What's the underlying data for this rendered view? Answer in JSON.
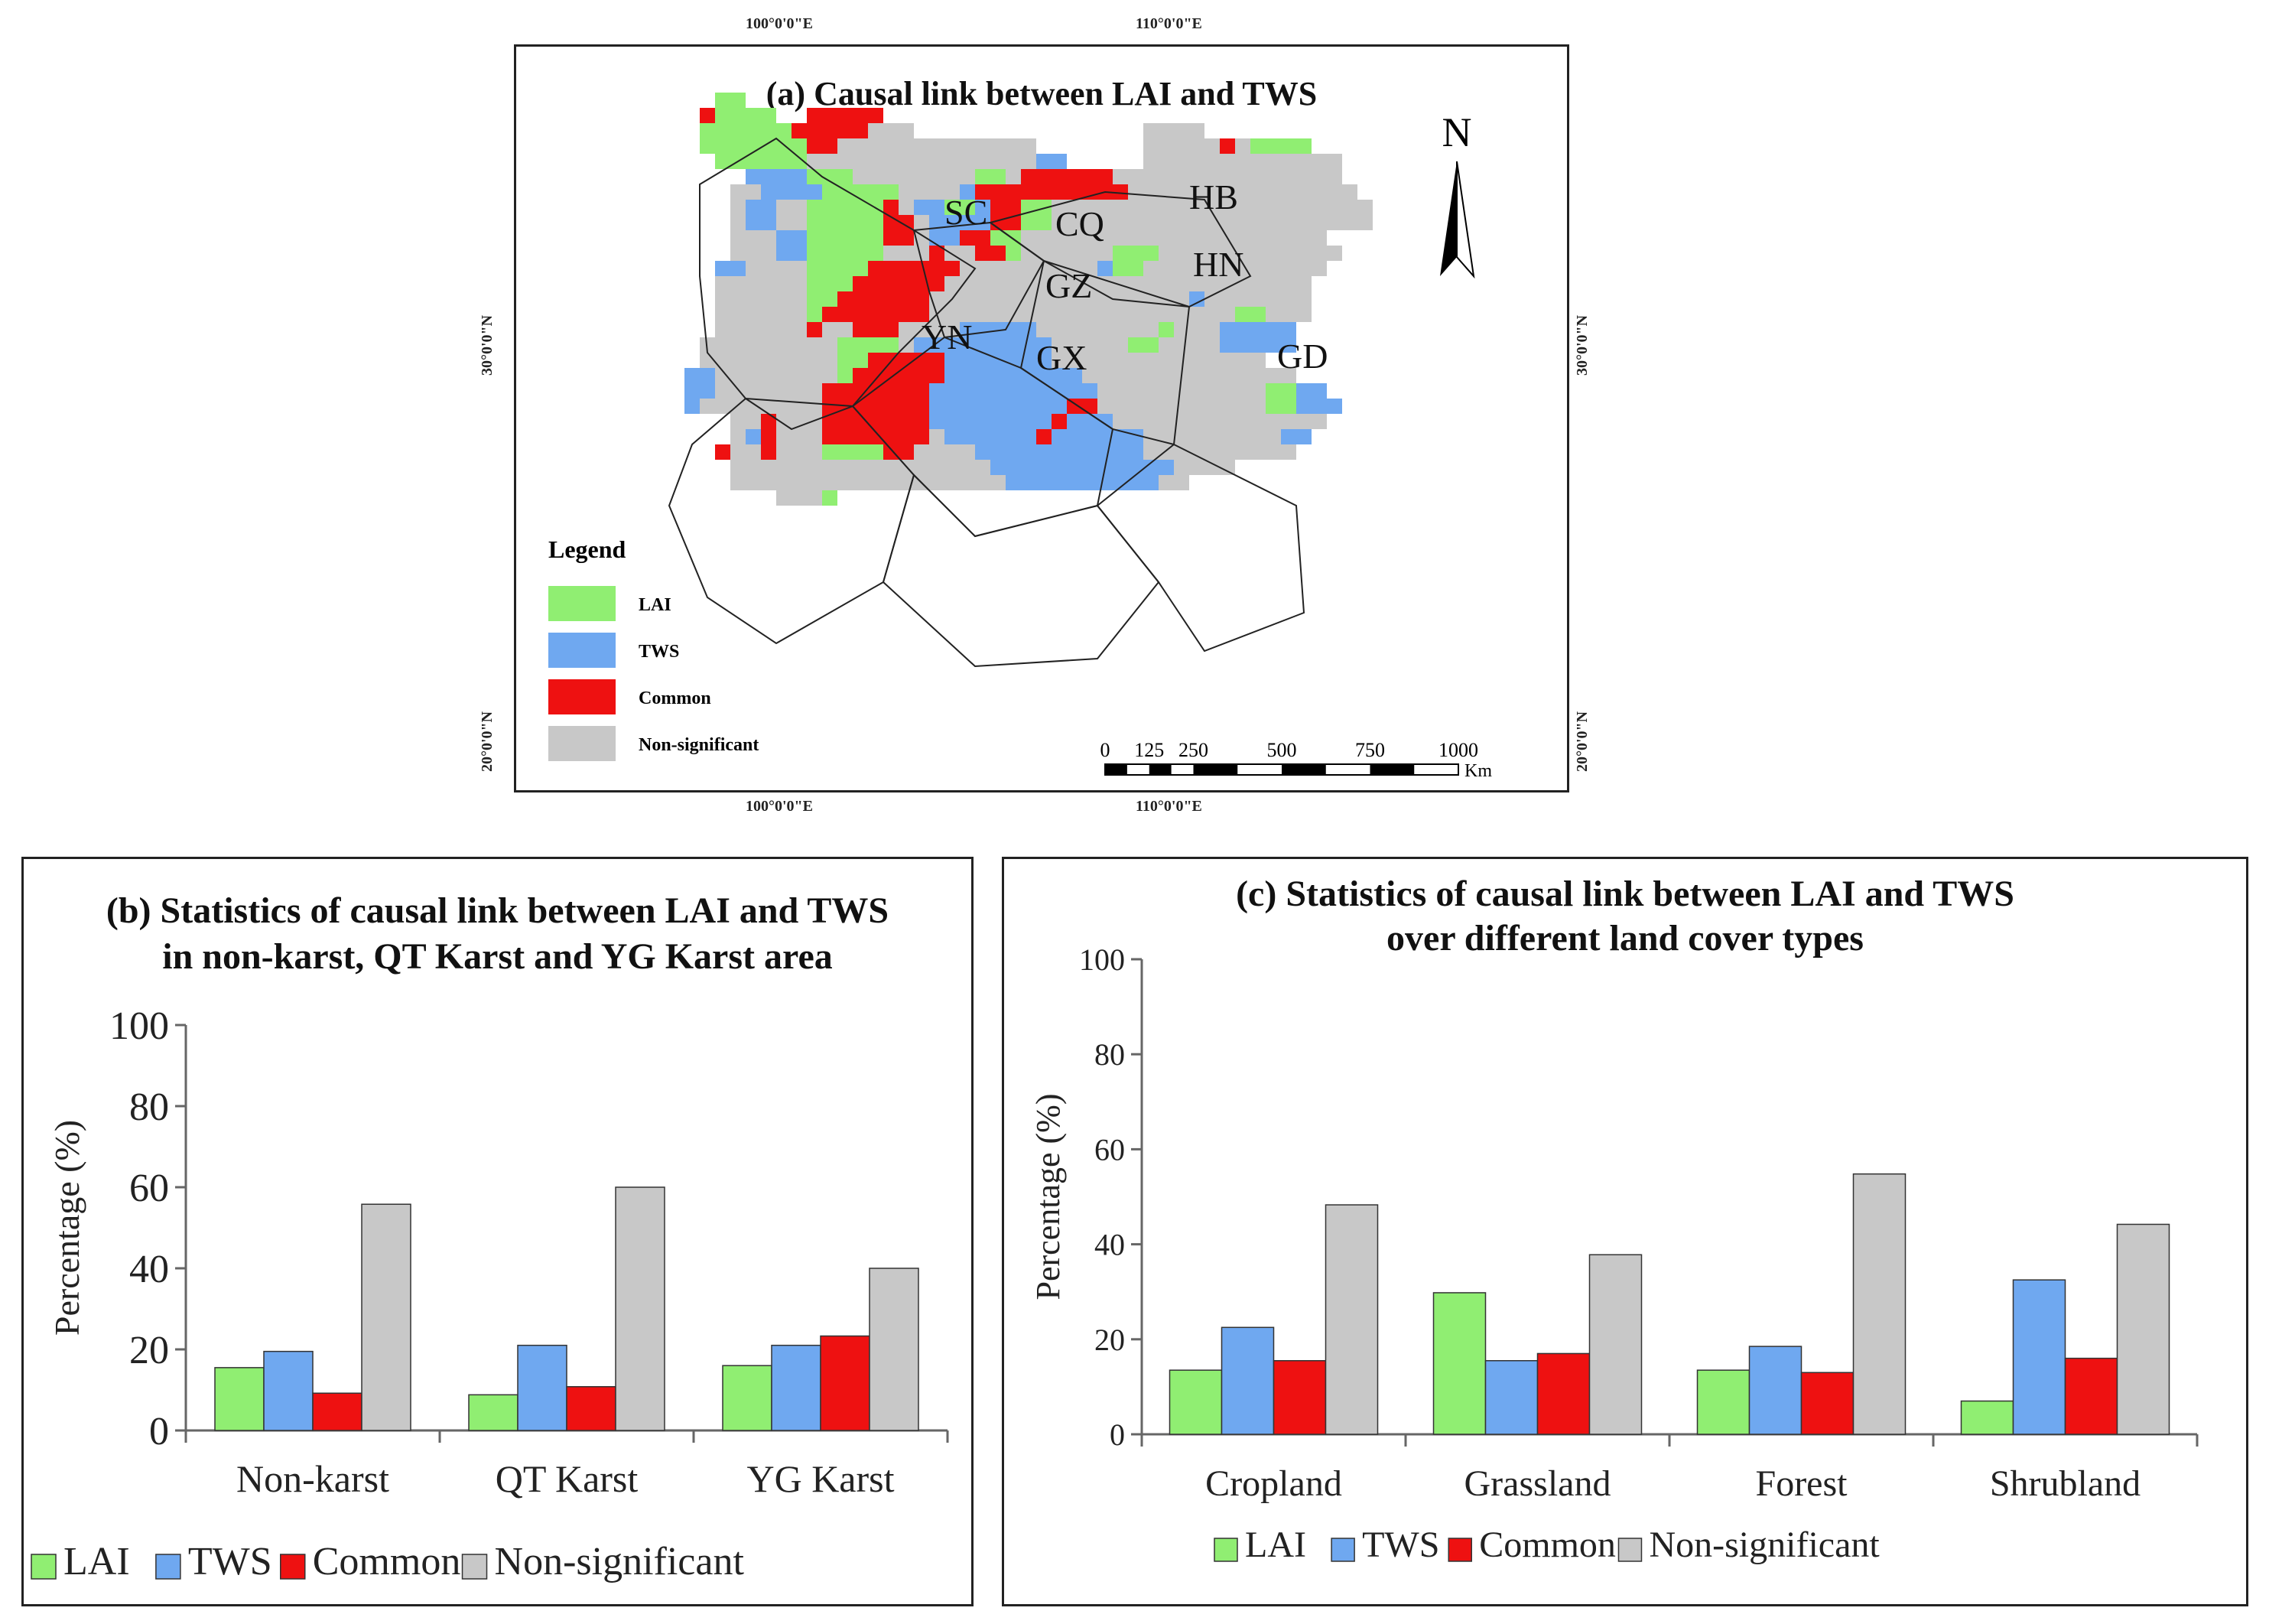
{
  "map": {
    "title": "(a) Causal link between LAI and TWS",
    "north": "N",
    "coords": {
      "top_left": "100°0'0\"E",
      "top_right": "110°0'0\"E",
      "bottom_left": "100°0'0\"E",
      "bottom_right": "110°0'0\"E",
      "left_30": "30°0'0\"N",
      "left_20": "20°0'0\"N",
      "right_30": "30°0'0\"N",
      "right_20": "20°0'0\"N"
    },
    "legend_title": "Legend",
    "legend": [
      {
        "label": "LAI",
        "color": "#90ee72"
      },
      {
        "label": "TWS",
        "color": "#6fa8f0"
      },
      {
        "label": "Common",
        "color": "#ee1111"
      },
      {
        "label": "Non-significant",
        "color": "#c8c8c8"
      }
    ],
    "provinces": [
      "SC",
      "CQ",
      "HB",
      "HN",
      "GZ",
      "YN",
      "GX",
      "GD"
    ],
    "scale_ticks": [
      "0",
      "125",
      "250",
      "500",
      "750",
      "1000"
    ],
    "scale_unit": "Km"
  },
  "chart_data": [
    {
      "type": "bar",
      "title": "(b) Statistics of causal link between LAI and TWS",
      "title_line2": "in non-karst, QT Karst and YG Karst area",
      "categories": [
        "Non-karst",
        "QT Karst",
        "YG Karst"
      ],
      "ylabel": "Percentage (%)",
      "ylim": [
        0,
        100
      ],
      "yticks": [
        0,
        20,
        40,
        60,
        80,
        100
      ],
      "series": [
        {
          "name": "LAI",
          "color": "#90ee72",
          "values": [
            15.5,
            8.8,
            16.0
          ]
        },
        {
          "name": "TWS",
          "color": "#6fa8f0",
          "values": [
            19.5,
            21.0,
            21.0
          ]
        },
        {
          "name": "Common",
          "color": "#ee1111",
          "values": [
            9.2,
            10.8,
            23.3
          ]
        },
        {
          "name": "Non-significant",
          "color": "#c8c8c8",
          "values": [
            55.8,
            60.0,
            40.0
          ]
        }
      ]
    },
    {
      "type": "bar",
      "title": "(c) Statistics of causal link between LAI and TWS",
      "title_line2": "over different land cover types",
      "categories": [
        "Cropland",
        "Grassland",
        "Forest",
        "Shrubland"
      ],
      "ylabel": "Percentage (%)",
      "ylim": [
        0,
        100
      ],
      "yticks": [
        0,
        20,
        40,
        60,
        80,
        100
      ],
      "series": [
        {
          "name": "LAI",
          "color": "#90ee72",
          "values": [
            13.5,
            29.8,
            13.5,
            7.0
          ]
        },
        {
          "name": "TWS",
          "color": "#6fa8f0",
          "values": [
            22.5,
            15.5,
            18.5,
            32.5
          ]
        },
        {
          "name": "Common",
          "color": "#ee1111",
          "values": [
            15.5,
            17.0,
            13.0,
            16.0
          ]
        },
        {
          "name": "Non-significant",
          "color": "#c8c8c8",
          "values": [
            48.3,
            37.8,
            54.8,
            44.2
          ]
        }
      ]
    }
  ]
}
